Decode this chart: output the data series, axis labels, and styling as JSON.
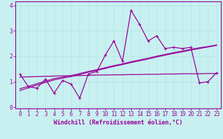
{
  "xlabel": "Windchill (Refroidissement éolien,°C)",
  "bg_color": "#c8f0f0",
  "line_color": "#990099",
  "grid_color": "#b8e8e8",
  "x_data": [
    0,
    1,
    2,
    3,
    4,
    5,
    6,
    7,
    8,
    9,
    10,
    11,
    12,
    13,
    14,
    15,
    16,
    17,
    18,
    19,
    20,
    21,
    22,
    23
  ],
  "y_scatter": [
    1.3,
    0.8,
    0.75,
    1.1,
    0.55,
    1.05,
    0.9,
    0.35,
    1.3,
    1.4,
    2.05,
    2.6,
    1.8,
    3.8,
    3.25,
    2.6,
    2.8,
    2.3,
    2.35,
    2.3,
    2.35,
    0.95,
    1.0,
    1.35
  ],
  "y_trend_upper": [
    0.72,
    0.82,
    0.92,
    1.02,
    1.12,
    1.18,
    1.24,
    1.32,
    1.4,
    1.47,
    1.55,
    1.63,
    1.7,
    1.78,
    1.85,
    1.92,
    2.0,
    2.07,
    2.14,
    2.2,
    2.27,
    2.33,
    2.38,
    2.44
  ],
  "y_trend_lower": [
    0.65,
    0.76,
    0.87,
    0.97,
    1.07,
    1.14,
    1.2,
    1.28,
    1.37,
    1.44,
    1.52,
    1.6,
    1.67,
    1.75,
    1.82,
    1.89,
    1.97,
    2.04,
    2.11,
    2.17,
    2.24,
    2.3,
    2.36,
    2.42
  ],
  "y_flat": [
    1.18,
    1.19,
    1.2,
    1.21,
    1.22,
    1.23,
    1.23,
    1.24,
    1.25,
    1.26,
    1.26,
    1.27,
    1.27,
    1.28,
    1.28,
    1.29,
    1.29,
    1.3,
    1.3,
    1.31,
    1.31,
    1.31,
    1.32,
    1.32
  ],
  "ylim": [
    -0.05,
    4.15
  ],
  "xlim": [
    -0.5,
    23.5
  ],
  "yticks": [
    0,
    1,
    2,
    3,
    4
  ],
  "xticks": [
    0,
    1,
    2,
    3,
    4,
    5,
    6,
    7,
    8,
    9,
    10,
    11,
    12,
    13,
    14,
    15,
    16,
    17,
    18,
    19,
    20,
    21,
    22,
    23
  ],
  "tick_fontsize": 5.5,
  "xlabel_fontsize": 6.0
}
